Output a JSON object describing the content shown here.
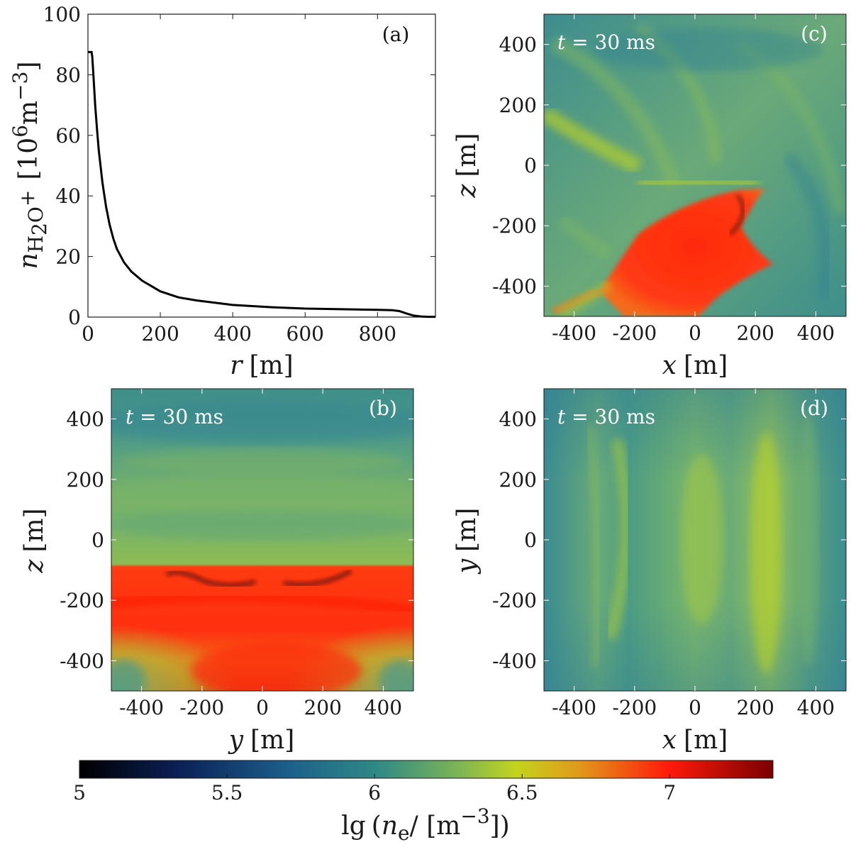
{
  "figure": {
    "colorbar": {
      "ticks": [
        "5",
        "5.5",
        "6",
        "6.5",
        "7"
      ],
      "tick_values": [
        5,
        5.5,
        6,
        6.5,
        7
      ],
      "range": [
        5,
        7.35
      ],
      "label_prefix": "lg",
      "label_n": "n",
      "label_sub": "e",
      "label_unit": "[m",
      "label_exp": "−3",
      "label_close": "]",
      "colors": [
        "#000000",
        "#0b1f55",
        "#1f6f8f",
        "#5aa37a",
        "#b7d32a",
        "#e0b01c",
        "#ff2a10",
        "#7a0000"
      ]
    }
  },
  "chart_data": [
    {
      "panel": "(a)",
      "type": "line",
      "xlabel_var": "r",
      "xlabel_unit": "[m]",
      "ylabel_var": "n",
      "ylabel_sub": "H",
      "ylabel_sub2": "2",
      "ylabel_sub3": "O",
      "ylabel_sup": "+",
      "ylabel_unit_open": "[10",
      "ylabel_unit_exp": "6",
      "ylabel_unit_m": "m",
      "ylabel_unit_exp2": "−3",
      "ylabel_unit_close": "]",
      "xlim": [
        0,
        960
      ],
      "ylim": [
        0,
        100
      ],
      "xticks": [
        0,
        200,
        400,
        600,
        800
      ],
      "yticks": [
        0,
        20,
        40,
        60,
        80,
        100
      ],
      "x": [
        0,
        10,
        12,
        15,
        20,
        25,
        30,
        40,
        50,
        60,
        70,
        80,
        100,
        120,
        150,
        200,
        250,
        300,
        400,
        500,
        600,
        700,
        800,
        840,
        860,
        880,
        900,
        920,
        940,
        960
      ],
      "y": [
        87.5,
        87.5,
        86,
        80,
        70,
        62,
        55,
        44.5,
        36.5,
        30.5,
        26,
        22.5,
        18,
        15,
        12,
        8.5,
        6.5,
        5.5,
        4,
        3.3,
        2.8,
        2.6,
        2.4,
        2.3,
        2.0,
        1.2,
        0.5,
        0.2,
        0.1,
        0.1
      ]
    },
    {
      "panel": "(b)",
      "type": "heatmap",
      "time_var": "t",
      "time_text": " = 30 ms",
      "xlabel_var": "y",
      "xlabel_unit": "[m]",
      "ylabel_var": "z",
      "ylabel_unit": "[m]",
      "xlim": [
        -500,
        500
      ],
      "ylim": [
        -500,
        500
      ],
      "xticks": [
        -400,
        -200,
        0,
        200,
        400
      ],
      "yticks": [
        -400,
        -200,
        0,
        200,
        400
      ]
    },
    {
      "panel": "(c)",
      "type": "heatmap",
      "time_var": "t",
      "time_text": " = 30 ms",
      "xlabel_var": "x",
      "xlabel_unit": "[m]",
      "ylabel_var": "z",
      "ylabel_unit": "[m]",
      "xlim": [
        -500,
        500
      ],
      "ylim": [
        -500,
        500
      ],
      "xticks": [
        -400,
        -200,
        0,
        200,
        400
      ],
      "yticks": [
        -400,
        -200,
        0,
        200,
        400
      ]
    },
    {
      "panel": "(d)",
      "type": "heatmap",
      "time_var": "t",
      "time_text": " = 30 ms",
      "xlabel_var": "x",
      "xlabel_unit": "[m]",
      "ylabel_var": "y",
      "ylabel_unit": "[m]",
      "xlim": [
        -500,
        500
      ],
      "ylim": [
        -500,
        500
      ],
      "xticks": [
        -400,
        -200,
        0,
        200,
        400
      ],
      "yticks": [
        -400,
        -200,
        0,
        200,
        400
      ]
    }
  ]
}
